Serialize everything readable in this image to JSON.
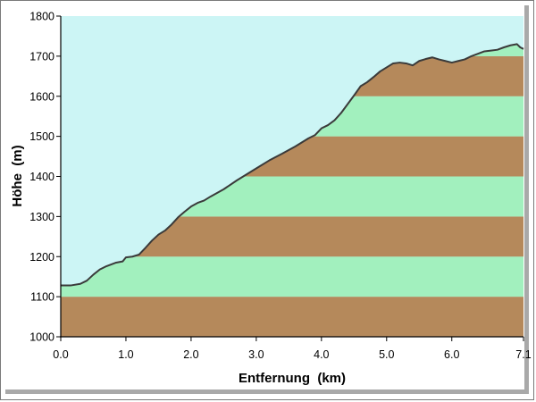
{
  "chart_data": {
    "type": "area",
    "xlabel": "Entfernung  (km)",
    "ylabel": "Höhe  (m)",
    "xlim": [
      0,
      7.1
    ],
    "ylim": [
      1000,
      1800
    ],
    "xticks": [
      "0.0",
      "1.0",
      "2.0",
      "3.0",
      "4.0",
      "5.0",
      "6.0",
      "7.1"
    ],
    "yticks": [
      "1000",
      "1100",
      "1200",
      "1300",
      "1400",
      "1500",
      "1600",
      "1700",
      "1800"
    ],
    "colors": {
      "sky": "#ccf5f5",
      "band_brown": "#b5895b",
      "band_green": "#a2f0be",
      "profile_line": "#3a3a3a"
    },
    "series": [
      {
        "x": [
          0.0,
          0.15,
          0.3,
          0.4,
          0.5,
          0.6,
          0.7,
          0.85,
          0.95,
          1.0,
          1.1,
          1.2,
          1.3,
          1.4,
          1.5,
          1.6,
          1.7,
          1.8,
          1.9,
          2.0,
          2.1,
          2.2,
          2.3,
          2.5,
          2.7,
          2.9,
          3.0,
          3.2,
          3.4,
          3.6,
          3.8,
          3.9,
          4.0,
          4.1,
          4.2,
          4.3,
          4.4,
          4.5,
          4.6,
          4.7,
          4.8,
          4.9,
          5.0,
          5.1,
          5.2,
          5.3,
          5.4,
          5.5,
          5.6,
          5.7,
          5.8,
          5.9,
          6.0,
          6.1,
          6.2,
          6.3,
          6.4,
          6.5,
          6.6,
          6.7,
          6.8,
          6.9,
          7.0,
          7.05,
          7.1
        ],
        "y": [
          1128,
          1128,
          1132,
          1140,
          1155,
          1168,
          1176,
          1185,
          1188,
          1198,
          1200,
          1205,
          1222,
          1240,
          1255,
          1265,
          1280,
          1298,
          1312,
          1325,
          1334,
          1340,
          1350,
          1368,
          1390,
          1410,
          1420,
          1440,
          1457,
          1475,
          1495,
          1503,
          1520,
          1528,
          1540,
          1558,
          1580,
          1602,
          1625,
          1635,
          1648,
          1662,
          1672,
          1682,
          1684,
          1682,
          1677,
          1688,
          1693,
          1697,
          1692,
          1688,
          1684,
          1688,
          1692,
          1700,
          1706,
          1712,
          1714,
          1716,
          1722,
          1727,
          1730,
          1722,
          1718
        ]
      }
    ]
  }
}
